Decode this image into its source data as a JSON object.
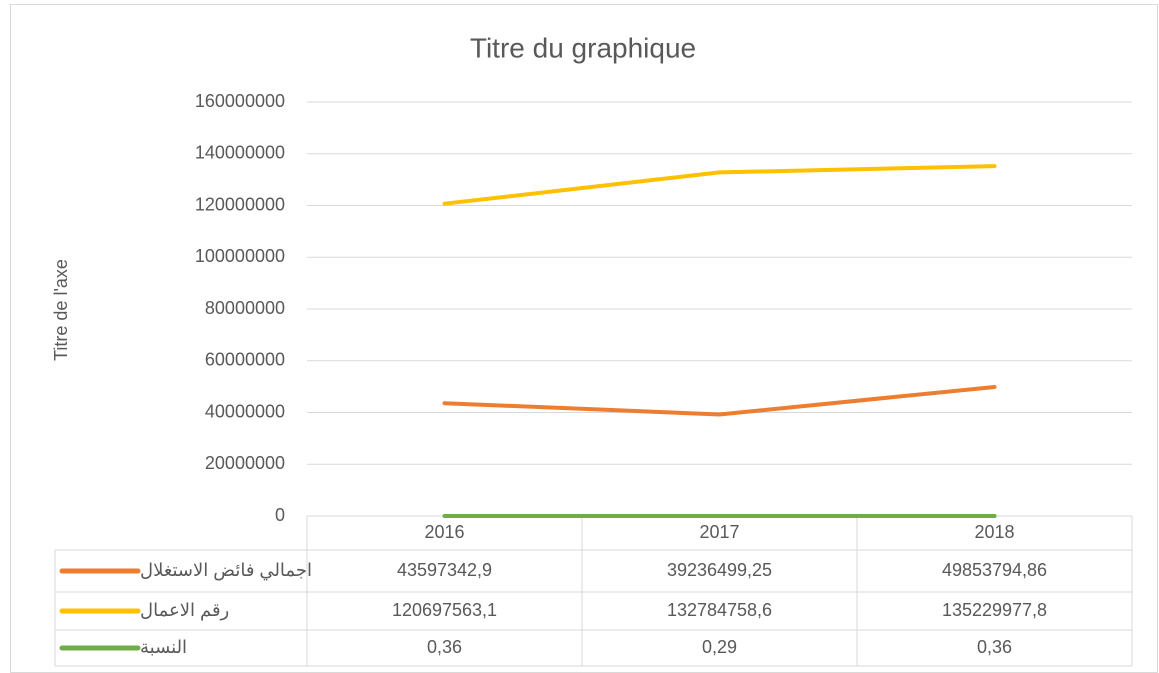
{
  "chart_data": {
    "type": "line",
    "title": "Titre du graphique",
    "y_label": "Titre de l'axe",
    "categories": [
      "2016",
      "2017",
      "2018"
    ],
    "series": [
      {
        "name": "اجمالي فائض الاستغلال",
        "color": "#ed7d31",
        "values": [
          43597342.9,
          39236499.25,
          49853794.86
        ],
        "value_labels": [
          "43597342,9",
          "39236499,25",
          "49853794,86"
        ]
      },
      {
        "name": "رقم الاعمال",
        "color": "#ffc000",
        "values": [
          120697563.1,
          132784758.6,
          135229977.8
        ],
        "value_labels": [
          "120697563,1",
          "132784758,6",
          "135229977,8"
        ]
      },
      {
        "name": "النسبة",
        "color": "#70ad47",
        "values": [
          0.36,
          0.29,
          0.36
        ],
        "value_labels": [
          "0,36",
          "0,29",
          "0,36"
        ]
      }
    ],
    "ylim": [
      0,
      160000000
    ],
    "yticks": [
      0,
      20000000,
      40000000,
      60000000,
      80000000,
      100000000,
      120000000,
      140000000,
      160000000
    ],
    "grid": true,
    "data_table": true
  }
}
